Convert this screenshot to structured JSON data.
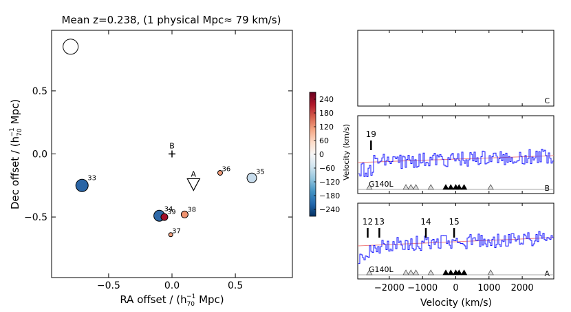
{
  "chart_data": [
    {
      "type": "scatter",
      "title": "Mean z=0.238, (1 physical Mpc≈ 79 km/s)",
      "xlabel": "RA offset / (h",
      "xlabel_sub": "70",
      "xlabel_sup": "−1",
      "xlabel_end": " Mpc)",
      "ylabel": "Dec offset  / (h",
      "ylabel_sub": "70",
      "ylabel_sup": "−1",
      "ylabel_end": " Mpc)",
      "xlim": [
        -0.95,
        0.95
      ],
      "ylim": [
        -0.98,
        0.98
      ],
      "xticks": [
        -0.5,
        0.0,
        0.5
      ],
      "xticklabels": [
        "−0.5",
        "0.0",
        "0.5"
      ],
      "yticks": [
        -0.5,
        0.0,
        0.5
      ],
      "yticklabels": [
        "−0.5",
        "0.0",
        "0.5"
      ],
      "galaxies": [
        {
          "label": "",
          "x": -0.8,
          "y": 0.85,
          "velocity": null,
          "size": 11,
          "color": "#ffffff"
        },
        {
          "label": "33",
          "x": -0.71,
          "y": -0.25,
          "velocity": -240,
          "size": 9,
          "color": "#2a65a5"
        },
        {
          "label": "34",
          "x": -0.1,
          "y": -0.49,
          "velocity": -230,
          "size": 8,
          "color": "#2e69a8"
        },
        {
          "label": "39",
          "x": -0.06,
          "y": -0.5,
          "velocity": 260,
          "size": 5,
          "color": "#a3112b"
        },
        {
          "label": "37",
          "x": -0.01,
          "y": -0.64,
          "velocity": 110,
          "size": 3,
          "color": "#f2a17f"
        },
        {
          "label": "38",
          "x": 0.1,
          "y": -0.48,
          "velocity": 140,
          "size": 5,
          "color": "#ef9370"
        },
        {
          "label": "36",
          "x": 0.38,
          "y": -0.15,
          "velocity": 120,
          "size": 3.5,
          "color": "#f09c7b"
        },
        {
          "label": "35",
          "x": 0.63,
          "y": -0.19,
          "velocity": -90,
          "size": 7,
          "color": "#c7dcec"
        }
      ],
      "markers": [
        {
          "label": "B",
          "x": 0.0,
          "y": 0.0,
          "shape": "plus"
        },
        {
          "label": "A",
          "x": 0.17,
          "y": -0.24,
          "shape": "triangle-down"
        }
      ]
    },
    {
      "type": "colorbar",
      "range": [
        -270,
        270
      ],
      "ticks": [
        240,
        180,
        120,
        60,
        0,
        -60,
        -120,
        -180,
        -240
      ],
      "ticklabels": [
        "240",
        "180",
        "120",
        "60",
        "0",
        "−60",
        "−120",
        "−180",
        "−240"
      ],
      "colors": [
        "#053061",
        "#2166ac",
        "#4393c3",
        "#92c5de",
        "#d1e5f0",
        "#f7f7f7",
        "#fddbc7",
        "#f4a582",
        "#d6604d",
        "#b2182b",
        "#67001f"
      ]
    },
    {
      "type": "line",
      "panels": [
        {
          "label": "C",
          "empty": true
        },
        {
          "label": "B",
          "grating": "G140L",
          "ylabel": "Velocity (km/s)",
          "lines": [
            {
              "label": "19",
              "x": -2550
            }
          ],
          "open_triangles": [
            -2600,
            -1500,
            -1350,
            -1200,
            -750,
            1050
          ],
          "filled_triangles": [
            -300,
            -150,
            0,
            100,
            250
          ]
        },
        {
          "label": "A",
          "grating": "G140L",
          "lines": [
            {
              "label": "12",
              "x": -2650
            },
            {
              "label": "13",
              "x": -2300
            },
            {
              "label": "14",
              "x": -900
            },
            {
              "label": "15",
              "x": -50
            }
          ],
          "open_triangles": [
            -2600,
            -1500,
            -1350,
            -1200,
            -750,
            1050
          ],
          "filled_triangles": [
            -300,
            -150,
            0,
            100,
            250
          ]
        }
      ],
      "xlabel": "Velocity (km/s)",
      "xlim": [
        -2950,
        2950
      ],
      "xticks": [
        -2000,
        -1000,
        0,
        1000,
        2000
      ],
      "xticklabels": [
        "−2000",
        "−1000",
        "0",
        "1000",
        "2000"
      ]
    }
  ]
}
